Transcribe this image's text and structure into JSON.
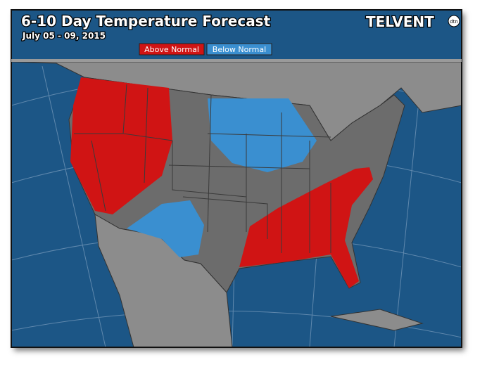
{
  "header": {
    "title": "6-10 Day Temperature Forecast",
    "date": "July 05 - 09, 2015",
    "logo": "TELVENT",
    "logo_badge": "dtn"
  },
  "legend": [
    {
      "label": "Above Normal",
      "color": "#d01414"
    },
    {
      "label": "Below Normal",
      "color": "#3a8fd0"
    }
  ]
}
